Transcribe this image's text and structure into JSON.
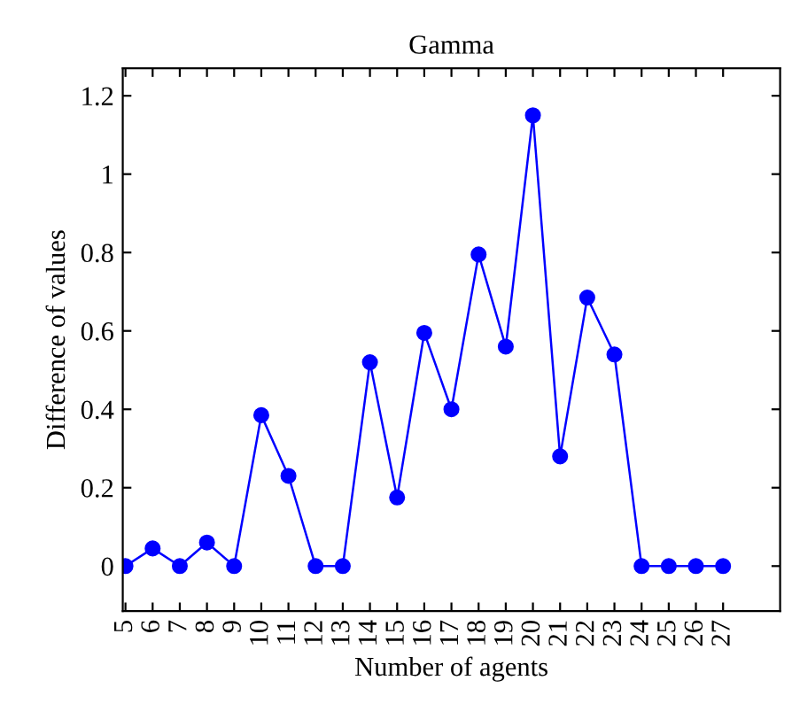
{
  "chart_data": {
    "type": "line",
    "title": "Gamma",
    "xlabel": "Number of agents",
    "ylabel": "Difference of values",
    "x": [
      5,
      6,
      7,
      8,
      9,
      10,
      11,
      12,
      13,
      14,
      15,
      16,
      17,
      18,
      19,
      20,
      21,
      22,
      23,
      24,
      25,
      26,
      27
    ],
    "series": [
      {
        "color": "#0000ff",
        "values": [
          0,
          0.045,
          0,
          0.06,
          0,
          0.385,
          0.23,
          0,
          0,
          0.52,
          0.175,
          0.595,
          0.4,
          0.795,
          0.56,
          1.15,
          0.28,
          0.685,
          0.54,
          0,
          0,
          0,
          0
        ]
      }
    ],
    "xlim": [
      4.9,
      29.1
    ],
    "xticks": [
      5,
      6,
      7,
      8,
      9,
      10,
      11,
      12,
      13,
      14,
      15,
      16,
      17,
      18,
      19,
      20,
      21,
      22,
      23,
      24,
      25,
      26,
      27
    ],
    "ylim": [
      -0.115,
      1.27
    ],
    "yticks": [
      0,
      0.2,
      0.4,
      0.6,
      0.8,
      1,
      1.2
    ],
    "marker": "circle",
    "line_style": "solid",
    "grid": false,
    "legend": false
  }
}
